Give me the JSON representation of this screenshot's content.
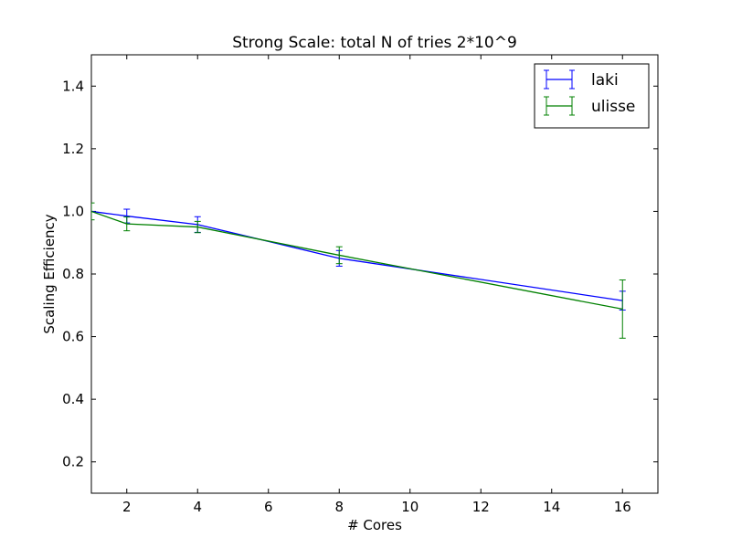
{
  "chart_data": {
    "type": "line",
    "title": "Strong Scale: total N of tries 2*10^9",
    "xlabel": "# Cores",
    "ylabel": "Scaling Efficiency",
    "xlim": [
      1,
      17
    ],
    "ylim": [
      0.1,
      1.5
    ],
    "xticks": [
      2,
      4,
      6,
      8,
      10,
      12,
      14,
      16
    ],
    "yticks": [
      0.2,
      0.4,
      0.6,
      0.8,
      1.0,
      1.2,
      1.4
    ],
    "xtick_labels": [
      "2",
      "4",
      "6",
      "8",
      "10",
      "12",
      "14",
      "16"
    ],
    "ytick_labels": [
      "0.2",
      "0.4",
      "0.6",
      "0.8",
      "1.0",
      "1.2",
      "1.4"
    ],
    "grid": false,
    "legend_position": "top-right",
    "error_bars": true,
    "series": [
      {
        "name": "laki",
        "color": "#0000ff",
        "x": [
          1,
          2,
          4,
          8,
          16
        ],
        "y": [
          1.0,
          0.985,
          0.958,
          0.85,
          0.715
        ],
        "err": [
          0.0,
          0.022,
          0.025,
          0.025,
          0.03
        ]
      },
      {
        "name": "ulisse",
        "color": "#008000",
        "x": [
          1,
          2,
          4,
          8,
          16
        ],
        "y": [
          1.0,
          0.96,
          0.95,
          0.86,
          0.688
        ],
        "err": [
          0.027,
          0.022,
          0.018,
          0.027,
          0.093
        ]
      }
    ]
  }
}
